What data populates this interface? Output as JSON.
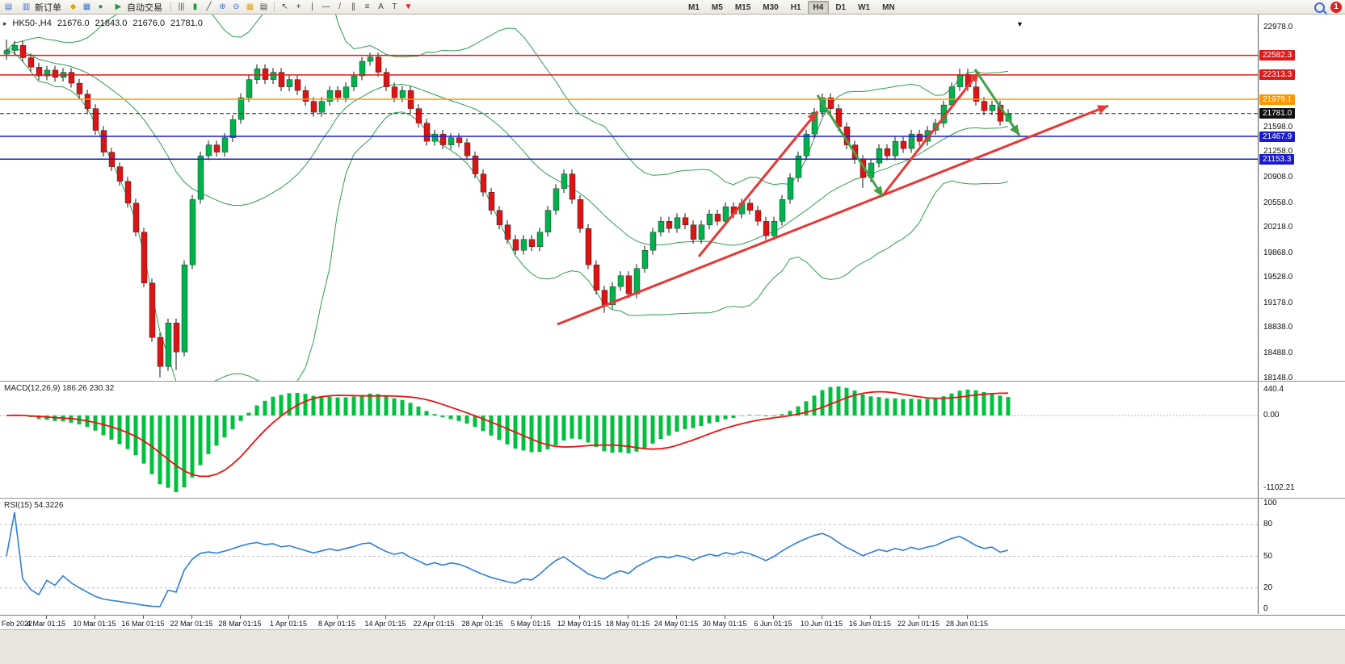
{
  "toolbar": {
    "new_order_label": "新订单",
    "autotrade_label": "自动交易",
    "timeframes": [
      "M1",
      "M5",
      "M15",
      "M30",
      "H1",
      "H4",
      "D1",
      "W1",
      "MN"
    ],
    "active_timeframe": "H4",
    "notification_count": "1",
    "icons": {
      "chart_window": "▤",
      "new_order": "▥",
      "market_watch": "◆",
      "data_window": "▦",
      "navigator": "●",
      "autotrade_play": "▶",
      "bar_chart": "|||",
      "candlestick_chart": "▮",
      "line_chart": "╱",
      "zoom_in": "⊕",
      "zoom_out": "⊖",
      "tile_windows": "▦",
      "new_chart": "▤",
      "cursor": "↖",
      "crosshair": "+",
      "vertical_line": "|",
      "horizontal_line": "—",
      "trendline": "/",
      "channel": "∥",
      "fibonacci": "≡",
      "text": "A",
      "label": "T",
      "shapes": "▼",
      "header_marker": "▸",
      "shift_marker": "▼"
    }
  },
  "chart": {
    "header": {
      "symbol_period": "HK50-,H4",
      "open": "21676.0",
      "high": "21843.0",
      "low": "21676.0",
      "close": "21781.0"
    }
  },
  "chart_data": {
    "type": "candlestick",
    "title": "HK50-,H4",
    "ylim": [
      18148.0,
      22978.0
    ],
    "price_ticks": [
      22978.0,
      21598.0,
      21258.0,
      20908.0,
      20558.0,
      20218.0,
      19868.0,
      19528.0,
      19178.0,
      18838.0,
      18488.0,
      18148.0
    ],
    "levels": [
      {
        "value": 22582.3,
        "color": "#e01818"
      },
      {
        "value": 22313.3,
        "color": "#e01818"
      },
      {
        "value": 21979.1,
        "color": "#ff9800"
      },
      {
        "value": 21467.9,
        "color": "#1a1ad0"
      },
      {
        "value": 21153.3,
        "color": "#1a1ad0"
      }
    ],
    "last_price": 21781.0,
    "up_color": "#00b14c",
    "down_color": "#dc1414",
    "bollinger": {
      "period": 20,
      "deviation": 2,
      "color": "#2f9e4f"
    },
    "candles": [
      [
        22600,
        22800,
        22520,
        22650
      ],
      [
        22650,
        22780,
        22590,
        22720
      ],
      [
        22720,
        22780,
        22490,
        22550
      ],
      [
        22550,
        22610,
        22360,
        22420
      ],
      [
        22420,
        22480,
        22240,
        22300
      ],
      [
        22300,
        22440,
        22240,
        22380
      ],
      [
        22380,
        22440,
        22220,
        22280
      ],
      [
        22280,
        22410,
        22220,
        22350
      ],
      [
        22350,
        22410,
        22140,
        22200
      ],
      [
        22200,
        22260,
        21990,
        22050
      ],
      [
        22050,
        22110,
        21790,
        21850
      ],
      [
        21850,
        21910,
        21490,
        21550
      ],
      [
        21550,
        21610,
        21190,
        21250
      ],
      [
        21250,
        21310,
        20990,
        21050
      ],
      [
        21050,
        21110,
        20790,
        20850
      ],
      [
        20850,
        20910,
        20490,
        20550
      ],
      [
        20550,
        20610,
        20090,
        20150
      ],
      [
        20150,
        20210,
        19390,
        19450
      ],
      [
        19450,
        19510,
        18640,
        18700
      ],
      [
        18700,
        18760,
        18150,
        18300
      ],
      [
        18300,
        18960,
        18240,
        18900
      ],
      [
        18900,
        18960,
        18250,
        18500
      ],
      [
        18500,
        19760,
        18440,
        19700
      ],
      [
        19700,
        20660,
        19640,
        20600
      ],
      [
        20600,
        21260,
        20540,
        21200
      ],
      [
        21200,
        21410,
        21140,
        21350
      ],
      [
        21350,
        21410,
        21190,
        21250
      ],
      [
        21250,
        21510,
        21190,
        21450
      ],
      [
        21450,
        21760,
        21390,
        21700
      ],
      [
        21700,
        22060,
        21640,
        22000
      ],
      [
        22000,
        22310,
        21940,
        22250
      ],
      [
        22250,
        22460,
        22190,
        22400
      ],
      [
        22400,
        22460,
        22190,
        22250
      ],
      [
        22250,
        22410,
        22190,
        22350
      ],
      [
        22350,
        22410,
        22090,
        22150
      ],
      [
        22150,
        22310,
        22090,
        22250
      ],
      [
        22250,
        22310,
        22040,
        22100
      ],
      [
        22100,
        22160,
        21890,
        21950
      ],
      [
        21950,
        22010,
        21740,
        21800
      ],
      [
        21800,
        22010,
        21740,
        21950
      ],
      [
        21950,
        22160,
        21890,
        22100
      ],
      [
        22100,
        22160,
        21940,
        22000
      ],
      [
        22000,
        22210,
        21940,
        22150
      ],
      [
        22150,
        22360,
        22090,
        22300
      ],
      [
        22300,
        22560,
        22240,
        22500
      ],
      [
        22500,
        22620,
        22440,
        22560
      ],
      [
        22560,
        22620,
        22290,
        22350
      ],
      [
        22350,
        22410,
        22090,
        22150
      ],
      [
        22150,
        22210,
        21940,
        22000
      ],
      [
        22000,
        22160,
        21940,
        22100
      ],
      [
        22100,
        22160,
        21790,
        21850
      ],
      [
        21850,
        21910,
        21590,
        21650
      ],
      [
        21650,
        21710,
        21340,
        21400
      ],
      [
        21400,
        21560,
        21340,
        21500
      ],
      [
        21500,
        21560,
        21290,
        21350
      ],
      [
        21350,
        21510,
        21290,
        21450
      ],
      [
        21450,
        21510,
        21320,
        21380
      ],
      [
        21380,
        21440,
        21140,
        21200
      ],
      [
        21200,
        21260,
        20890,
        20950
      ],
      [
        20950,
        21010,
        20640,
        20700
      ],
      [
        20700,
        20760,
        20390,
        20450
      ],
      [
        20450,
        20510,
        20190,
        20250
      ],
      [
        20250,
        20310,
        19990,
        20050
      ],
      [
        20050,
        20110,
        19840,
        19900
      ],
      [
        19900,
        20110,
        19840,
        20050
      ],
      [
        20050,
        20110,
        19890,
        19950
      ],
      [
        19950,
        20210,
        19890,
        20150
      ],
      [
        20150,
        20510,
        20090,
        20450
      ],
      [
        20450,
        20810,
        20390,
        20750
      ],
      [
        20750,
        21010,
        20690,
        20950
      ],
      [
        20950,
        21010,
        20540,
        20600
      ],
      [
        20600,
        20660,
        20140,
        20200
      ],
      [
        20200,
        20260,
        19640,
        19700
      ],
      [
        19700,
        19760,
        19290,
        19350
      ],
      [
        19350,
        19410,
        19040,
        19150
      ],
      [
        19150,
        19460,
        19090,
        19400
      ],
      [
        19400,
        19610,
        19340,
        19550
      ],
      [
        19550,
        19610,
        19240,
        19300
      ],
      [
        19300,
        19710,
        19240,
        19650
      ],
      [
        19650,
        19960,
        19590,
        19900
      ],
      [
        19900,
        20210,
        19840,
        20150
      ],
      [
        20150,
        20360,
        20090,
        20300
      ],
      [
        20300,
        20360,
        20140,
        20200
      ],
      [
        20200,
        20410,
        20140,
        20350
      ],
      [
        20350,
        20410,
        20190,
        20250
      ],
      [
        20250,
        20310,
        19990,
        20050
      ],
      [
        20050,
        20310,
        19990,
        20250
      ],
      [
        20250,
        20460,
        20190,
        20400
      ],
      [
        20400,
        20460,
        20240,
        20300
      ],
      [
        20300,
        20560,
        20240,
        20500
      ],
      [
        20500,
        20560,
        20340,
        20400
      ],
      [
        20400,
        20610,
        20340,
        20550
      ],
      [
        20550,
        20610,
        20390,
        20450
      ],
      [
        20450,
        20510,
        20240,
        20300
      ],
      [
        20300,
        20360,
        20040,
        20100
      ],
      [
        20100,
        20360,
        20040,
        20300
      ],
      [
        20300,
        20660,
        20240,
        20600
      ],
      [
        20600,
        20960,
        20540,
        20900
      ],
      [
        20900,
        21260,
        20840,
        21200
      ],
      [
        21200,
        21560,
        21140,
        21500
      ],
      [
        21500,
        21860,
        21440,
        21800
      ],
      [
        21800,
        22060,
        21740,
        22000
      ],
      [
        22000,
        22060,
        21790,
        21850
      ],
      [
        21850,
        21910,
        21540,
        21600
      ],
      [
        21600,
        21660,
        21290,
        21350
      ],
      [
        21350,
        21410,
        21090,
        21150
      ],
      [
        21150,
        21210,
        20760,
        20900
      ],
      [
        20900,
        21160,
        20840,
        21100
      ],
      [
        21100,
        21360,
        21040,
        21300
      ],
      [
        21300,
        21360,
        21140,
        21200
      ],
      [
        21200,
        21460,
        21140,
        21400
      ],
      [
        21400,
        21460,
        21240,
        21300
      ],
      [
        21300,
        21560,
        21240,
        21500
      ],
      [
        21500,
        21560,
        21340,
        21400
      ],
      [
        21400,
        21610,
        21340,
        21550
      ],
      [
        21550,
        21710,
        21490,
        21650
      ],
      [
        21650,
        21960,
        21590,
        21900
      ],
      [
        21900,
        22210,
        21840,
        22150
      ],
      [
        22150,
        22400,
        22090,
        22320
      ],
      [
        22320,
        22400,
        22090,
        22150
      ],
      [
        22150,
        22210,
        21890,
        21950
      ],
      [
        21950,
        22010,
        21760,
        21820
      ],
      [
        21820,
        21960,
        21760,
        21900
      ],
      [
        21900,
        21960,
        21616,
        21676
      ],
      [
        21676,
        21843,
        21676,
        21781
      ]
    ],
    "x_labels": [
      "Feb 2022",
      "4 Mar 01:15",
      "10 Mar 01:15",
      "16 Mar 01:15",
      "22 Mar 01:15",
      "28 Mar 01:15",
      "1 Apr 01:15",
      "8 Apr 01:15",
      "14 Apr 01:15",
      "22 Apr 01:15",
      "28 Apr 01:15",
      "5 May 01:15",
      "12 May 01:15",
      "18 May 01:15",
      "24 May 01:15",
      "30 May 01:15",
      "6 Jun 01:15",
      "10 Jun 01:15",
      "16 Jun 01:15",
      "22 Jun 01:15",
      "28 Jun 01:15"
    ],
    "indicators": [
      {
        "name": "MACD",
        "params": "12,26,9",
        "display": "MACD(12,26,9) 186.26 230.32",
        "scale_labels": [
          "440.4",
          "0.00",
          "-1102.21"
        ],
        "histogram_color": "#00c040",
        "signal_color": "#ee1212"
      },
      {
        "name": "RSI",
        "params": "15",
        "display": "RSI(15) 54.3226",
        "scale_labels": [
          "100",
          "80",
          "50",
          "20",
          "0"
        ],
        "levels": [
          80,
          50,
          20
        ],
        "line_color": "#2f7ed8"
      }
    ],
    "drawings": [
      {
        "type": "arrow",
        "color": "#e53935",
        "from": [
          865,
          300
        ],
        "to": [
          1012,
          120
        ]
      },
      {
        "type": "arrow",
        "color": "#e53935",
        "from": [
          690,
          384
        ],
        "to": [
          1372,
          113
        ]
      },
      {
        "type": "arrow",
        "color": "#e53935",
        "from": [
          1093,
          224
        ],
        "to": [
          1212,
          71
        ]
      },
      {
        "type": "arrow",
        "color": "#43a047",
        "from": [
          1012,
          100
        ],
        "to": [
          1093,
          226
        ]
      },
      {
        "type": "arrow",
        "color": "#43a047",
        "from": [
          1207,
          68
        ],
        "to": [
          1262,
          150
        ]
      }
    ]
  }
}
